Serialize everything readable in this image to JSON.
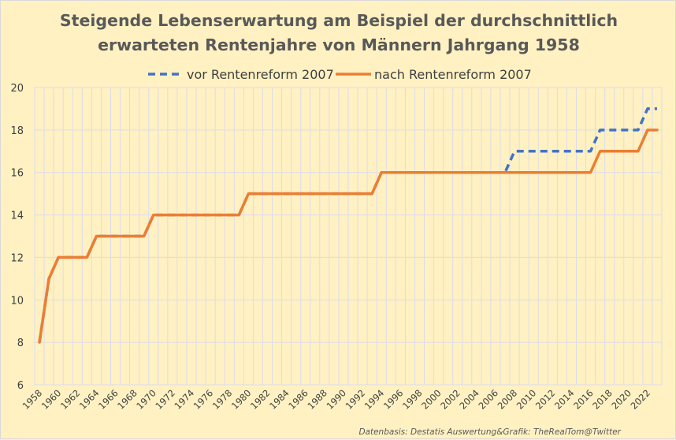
{
  "chart_data": {
    "type": "line",
    "title_lines": [
      "Steigende Lebenserwartung am Beispiel der durchschnittlich",
      "erwarteten Rentenjahre von Männern Jahrgang 1958"
    ],
    "x": [
      1958,
      1959,
      1960,
      1961,
      1962,
      1963,
      1964,
      1965,
      1966,
      1967,
      1968,
      1969,
      1970,
      1971,
      1972,
      1973,
      1974,
      1975,
      1976,
      1977,
      1978,
      1979,
      1980,
      1981,
      1982,
      1983,
      1984,
      1985,
      1986,
      1987,
      1988,
      1989,
      1990,
      1991,
      1992,
      1993,
      1994,
      1995,
      1996,
      1997,
      1998,
      1999,
      2000,
      2001,
      2002,
      2003,
      2004,
      2005,
      2006,
      2007,
      2008,
      2009,
      2010,
      2011,
      2012,
      2013,
      2014,
      2015,
      2016,
      2017,
      2018,
      2019,
      2020,
      2021,
      2022,
      2023
    ],
    "x_tick_labels": [
      "1958",
      "1960",
      "1962",
      "1964",
      "1966",
      "1968",
      "1970",
      "1972",
      "1974",
      "1976",
      "1978",
      "1980",
      "1982",
      "1984",
      "1986",
      "1988",
      "1990",
      "1992",
      "1994",
      "1996",
      "1998",
      "2000",
      "2002",
      "2004",
      "2006",
      "2008",
      "2010",
      "2012",
      "2014",
      "2016",
      "2018",
      "2020",
      "2022"
    ],
    "y_tick_labels": [
      "6",
      "8",
      "10",
      "12",
      "14",
      "16",
      "18",
      "20"
    ],
    "ylim": [
      6,
      20
    ],
    "series": [
      {
        "name": "vor Rentenreform 2007",
        "color": "#4472C4",
        "style": "dashed",
        "values": [
          8,
          11,
          12,
          12,
          12,
          12,
          13,
          13,
          13,
          13,
          13,
          13,
          14,
          14,
          14,
          14,
          14,
          14,
          14,
          14,
          14,
          14,
          15,
          15,
          15,
          15,
          15,
          15,
          15,
          15,
          15,
          15,
          15,
          15,
          15,
          15,
          16,
          16,
          16,
          16,
          16,
          16,
          16,
          16,
          16,
          16,
          16,
          16,
          16,
          16,
          17,
          17,
          17,
          17,
          17,
          17,
          17,
          17,
          17,
          18,
          18,
          18,
          18,
          18,
          19,
          19
        ]
      },
      {
        "name": "nach Rentenreform 2007",
        "color": "#ED7D31",
        "style": "solid",
        "values": [
          8,
          11,
          12,
          12,
          12,
          12,
          13,
          13,
          13,
          13,
          13,
          13,
          14,
          14,
          14,
          14,
          14,
          14,
          14,
          14,
          14,
          14,
          15,
          15,
          15,
          15,
          15,
          15,
          15,
          15,
          15,
          15,
          15,
          15,
          15,
          15,
          16,
          16,
          16,
          16,
          16,
          16,
          16,
          16,
          16,
          16,
          16,
          16,
          16,
          16,
          16,
          16,
          16,
          16,
          16,
          16,
          16,
          16,
          16,
          17,
          17,
          17,
          17,
          17,
          18,
          18
        ]
      }
    ],
    "grid": true,
    "legend_position": "top",
    "source_note": "Datenbasis: Destatis  Auswertung&Grafik: TheRealTom@Twitter"
  }
}
